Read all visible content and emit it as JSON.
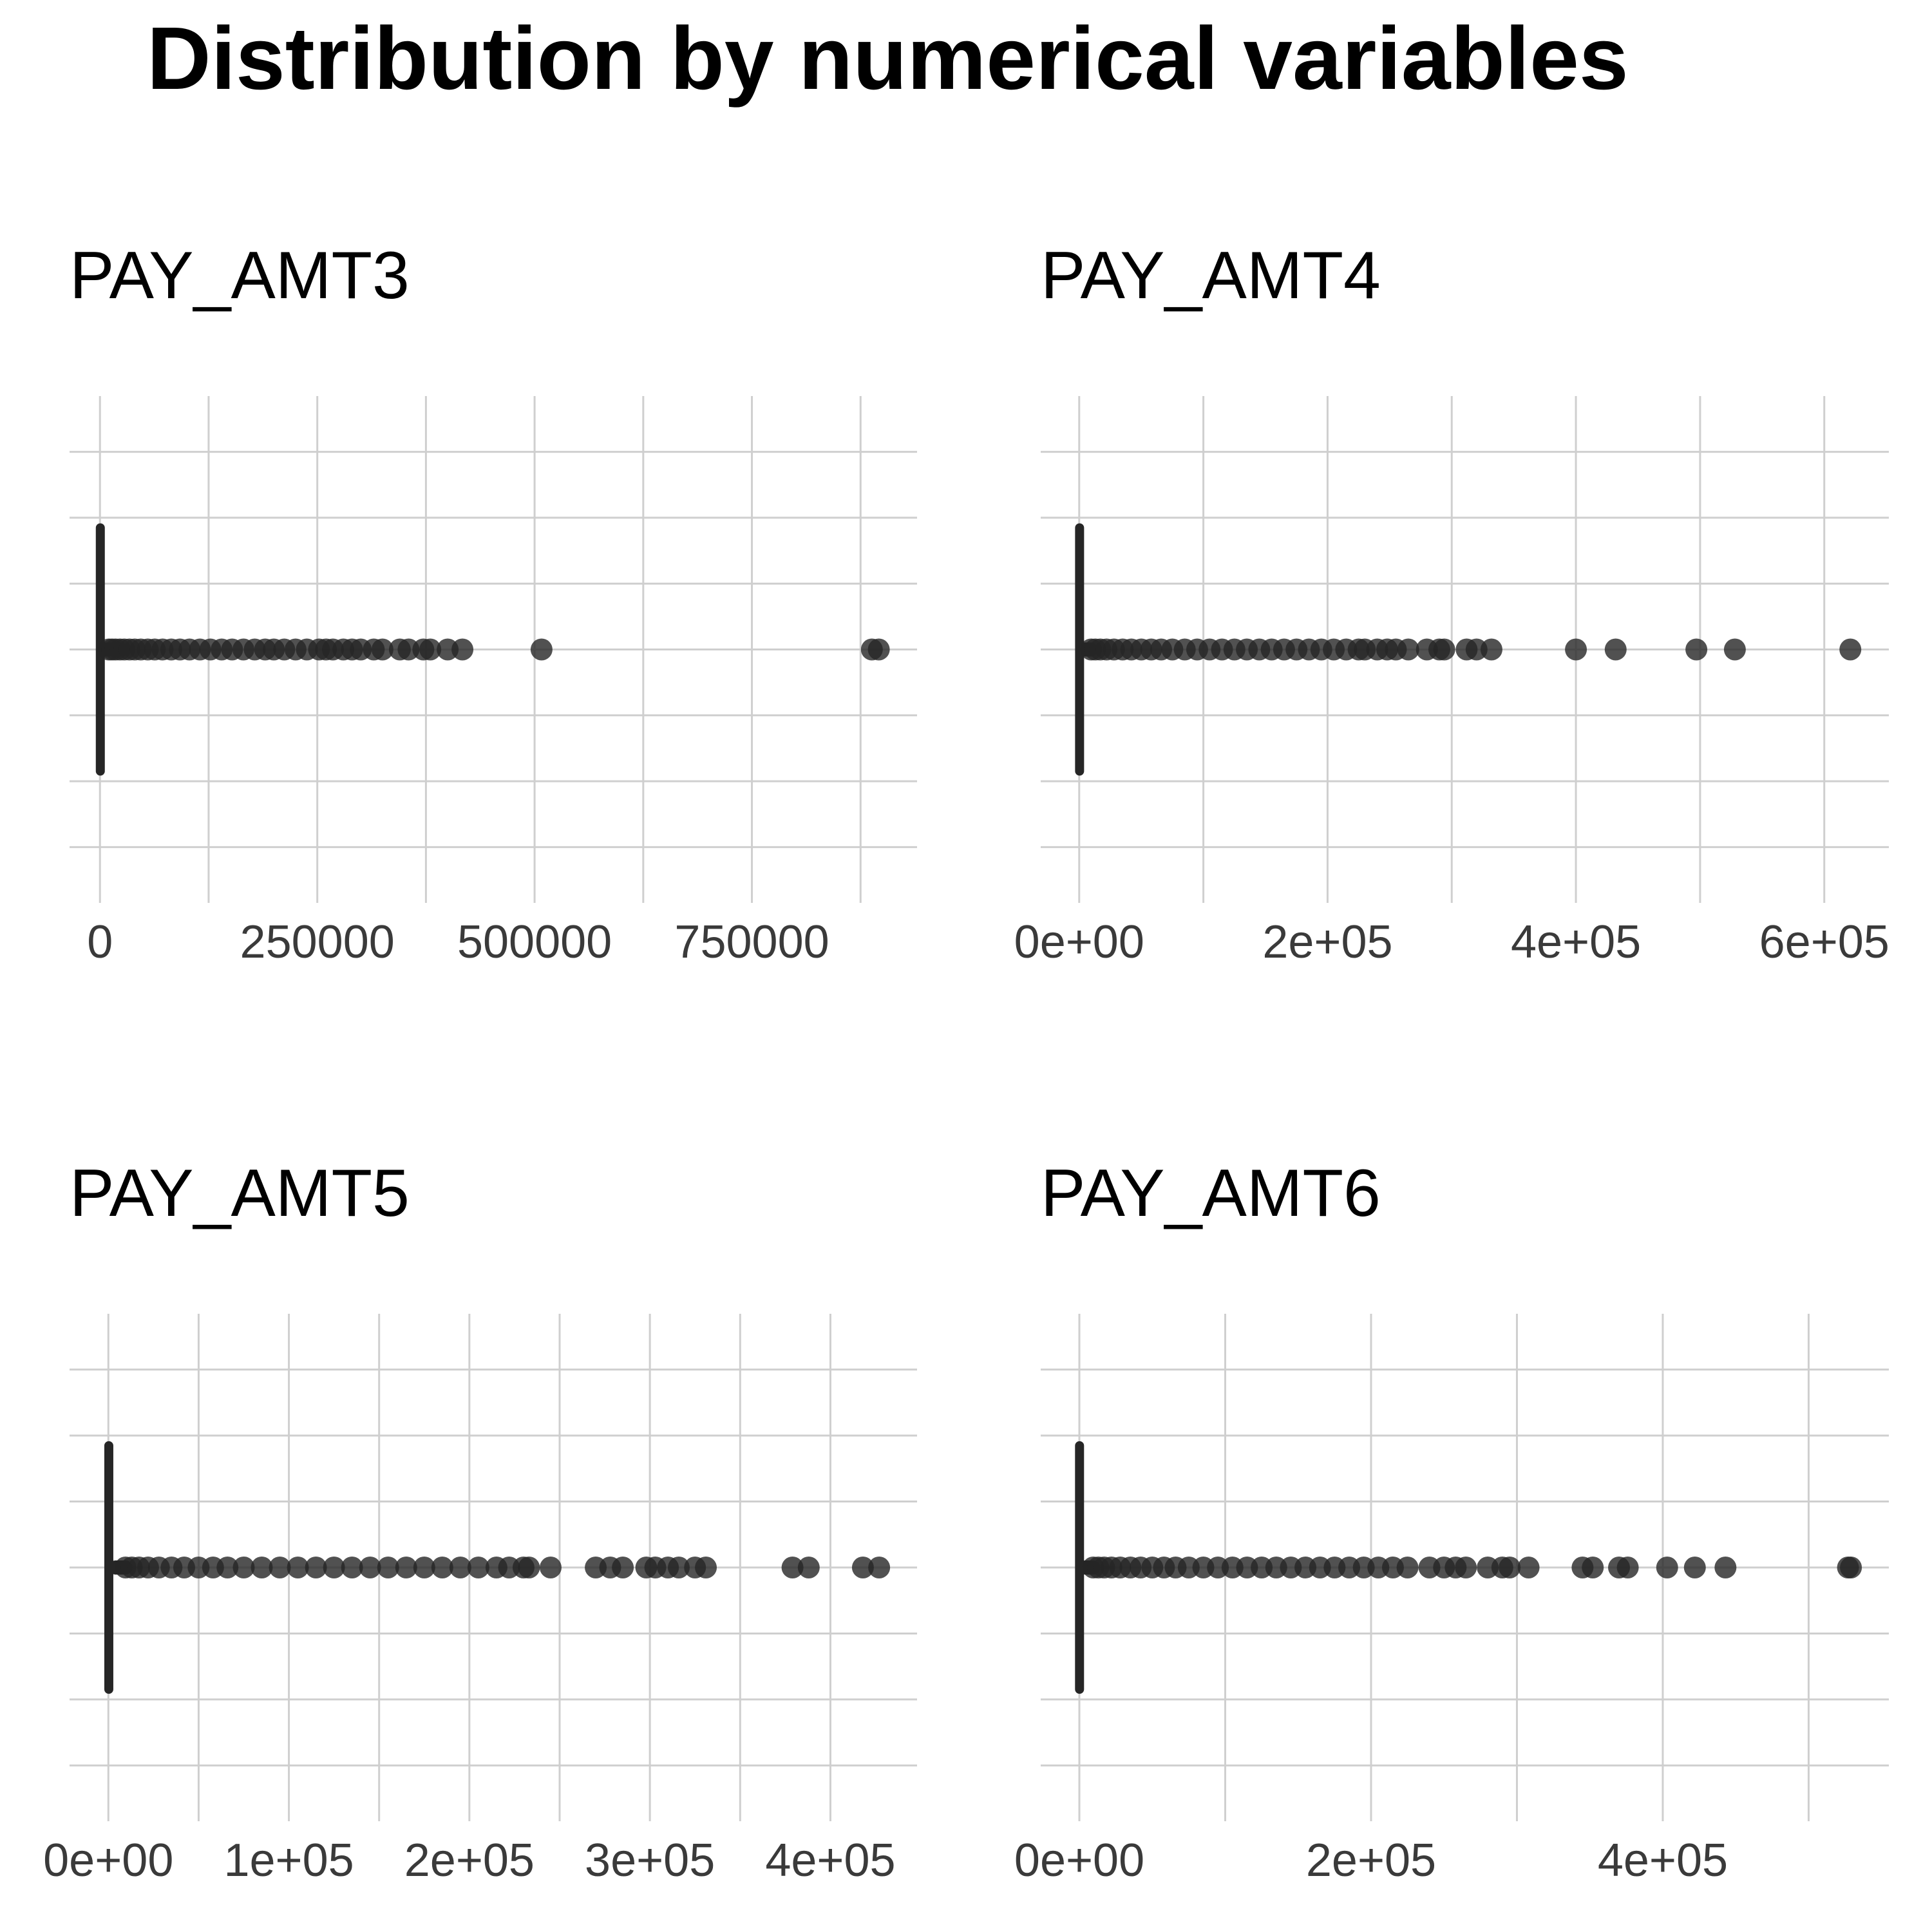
{
  "title": "Distribution by numerical variables",
  "colors": {
    "mark": "#262626",
    "grid": "#cfcfcf",
    "background": "#ffffff"
  },
  "chart_data": [
    {
      "type": "box",
      "title": "PAY_AMT3",
      "xlabel": "",
      "ylabel": "",
      "grid": true,
      "xlim": [
        -35000,
        940000
      ],
      "ticks": [
        0,
        250000,
        500000,
        750000
      ],
      "tick_labels": [
        "0",
        "250000",
        "500000",
        "750000"
      ],
      "box": {
        "min": 0,
        "q1": 390,
        "median": 1800,
        "q3": 4500,
        "whisker_high": 10200
      },
      "outliers": [
        10200,
        14000,
        18000,
        23000,
        28000,
        34000,
        40000,
        47000,
        55000,
        63000,
        72000,
        82000,
        92000,
        103000,
        115000,
        127000,
        140000,
        152000,
        165000,
        178000,
        190000,
        200000,
        212000,
        225000,
        238000,
        252000,
        260000,
        268000,
        280000,
        290000,
        300000,
        315000,
        325000,
        345000,
        355000,
        372000,
        380000,
        400000,
        417000,
        508000,
        888000,
        896000
      ]
    },
    {
      "type": "box",
      "title": "PAY_AMT4",
      "xlabel": "",
      "ylabel": "",
      "grid": true,
      "xlim": [
        -31000,
        652000
      ],
      "ticks": [
        0,
        200000,
        400000,
        600000
      ],
      "tick_labels": [
        "0e+00",
        "2e+05",
        "4e+05",
        "6e+05"
      ],
      "box": {
        "min": 0,
        "q1": 300,
        "median": 1500,
        "q3": 4000,
        "whisker_high": 9600
      },
      "outliers": [
        9600,
        13000,
        17000,
        22000,
        28000,
        35000,
        42000,
        50000,
        58000,
        66000,
        75000,
        85000,
        95000,
        105000,
        115000,
        125000,
        135000,
        145000,
        155000,
        165000,
        175000,
        185000,
        195000,
        205000,
        215000,
        225000,
        230000,
        240000,
        248000,
        255000,
        265000,
        280000,
        290000,
        294000,
        312000,
        320000,
        332000,
        400000,
        432000,
        497000,
        528000,
        621000
      ]
    },
    {
      "type": "box",
      "title": "PAY_AMT5",
      "xlabel": "",
      "ylabel": "",
      "grid": true,
      "xlim": [
        -21500,
        448000
      ],
      "ticks": [
        0,
        100000,
        200000,
        300000,
        400000
      ],
      "tick_labels": [
        "0e+00",
        "1e+05",
        "2e+05",
        "3e+05",
        "4e+05"
      ],
      "box": {
        "min": 0,
        "q1": 250,
        "median": 1500,
        "q3": 4000,
        "whisker_high": 9500
      },
      "outliers": [
        9500,
        13000,
        17000,
        22000,
        28000,
        35000,
        42000,
        50000,
        58000,
        66000,
        75000,
        85000,
        95000,
        105000,
        115000,
        125000,
        135000,
        145000,
        155000,
        165000,
        175000,
        185000,
        195000,
        205000,
        215000,
        222000,
        230000,
        233000,
        245000,
        270000,
        278000,
        285000,
        298000,
        303000,
        310000,
        316000,
        325000,
        331000,
        379000,
        388000,
        418000,
        427000
      ]
    },
    {
      "type": "box",
      "title": "PAY_AMT6",
      "xlabel": "",
      "ylabel": "",
      "grid": true,
      "xlim": [
        -26500,
        555000
      ],
      "ticks": [
        0,
        200000,
        400000
      ],
      "tick_labels": [
        "0e+00",
        "2e+05",
        "4e+05"
      ],
      "box": {
        "min": 0,
        "q1": 120,
        "median": 1500,
        "q3": 4000,
        "whisker_high": 9500
      },
      "outliers": [
        9500,
        13000,
        17000,
        22000,
        28000,
        35000,
        42000,
        50000,
        58000,
        66000,
        75000,
        85000,
        95000,
        105000,
        115000,
        125000,
        135000,
        145000,
        155000,
        165000,
        175000,
        185000,
        195000,
        205000,
        215000,
        225000,
        240000,
        250000,
        258000,
        265000,
        280000,
        290000,
        295000,
        308000,
        345000,
        352000,
        370000,
        376000,
        403000,
        422000,
        443000,
        527000,
        529000
      ]
    }
  ]
}
